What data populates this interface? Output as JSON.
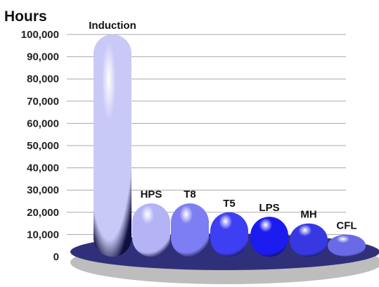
{
  "chart_data": {
    "type": "bar",
    "ylabel": "Hours",
    "categories": [
      "Induction",
      "HPS",
      "T8",
      "T5",
      "LPS",
      "MH",
      "CFL"
    ],
    "values": [
      100000,
      24000,
      24000,
      20000,
      18000,
      15000,
      10000
    ],
    "ylim": [
      0,
      100000
    ],
    "yticks": [
      "0",
      "10,000",
      "20,000",
      "30,000",
      "40,000",
      "50,000",
      "60,000",
      "70,000",
      "80,000",
      "90,000",
      "100,000"
    ],
    "grid": true,
    "legend": "none",
    "colors": [
      "#c9c9f7",
      "#b3b3f6",
      "#7d7df4",
      "#3e3ef2",
      "#1b1bf0",
      "#3838e2",
      "#6a6ae6"
    ],
    "base_color": "#30307a"
  }
}
